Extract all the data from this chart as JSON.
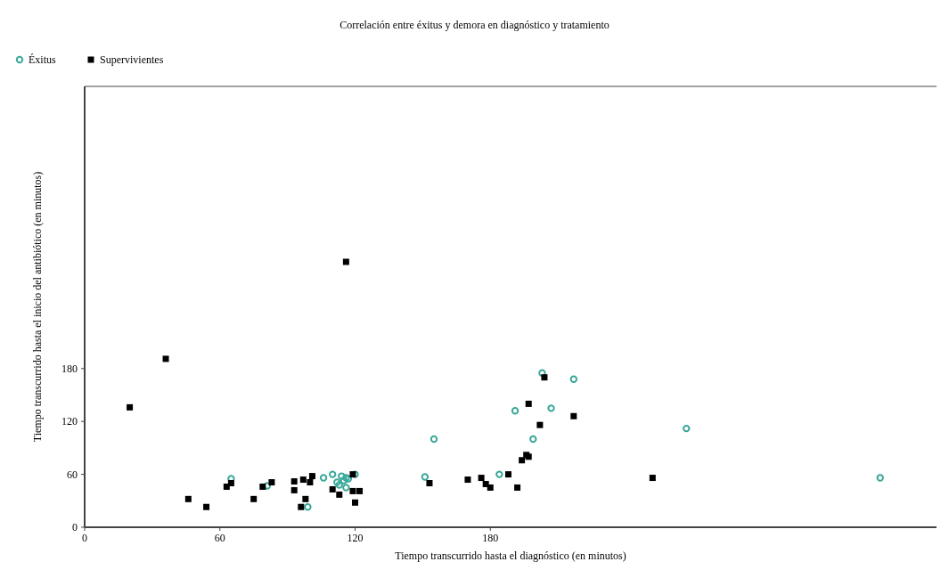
{
  "chart_data": {
    "type": "scatter",
    "title": "Correlación entre éxitus y demora en diagnóstico y tratamiento",
    "xlabel": "Tiempo transcurrido hasta el diagnóstico (en minutos)",
    "ylabel": "Tiempo transcurrido hasta el inicio del antibiótico (en minutos)",
    "xlim": [
      0,
      378
    ],
    "ylim": [
      0,
      500
    ],
    "xticks": [
      0,
      60,
      120,
      180
    ],
    "yticks": [
      0,
      60,
      120,
      180
    ],
    "grid": false,
    "legend": "top left",
    "series": [
      {
        "name": "Éxitus",
        "color": "#3aa89a",
        "marker": "circle",
        "x": [
          65,
          81,
          99,
          106,
          110,
          112,
          114,
          113,
          116,
          116,
          117,
          120,
          115,
          155,
          151,
          184,
          191,
          203,
          217,
          207,
          199,
          267,
          353
        ],
        "values": [
          55,
          47,
          23,
          56,
          60,
          51,
          58,
          48,
          45,
          56,
          55,
          60,
          53,
          100,
          57,
          60,
          132,
          175,
          168,
          135,
          100,
          112,
          56
        ]
      },
      {
        "name": "Supervivientes",
        "color": "#000000",
        "marker": "square",
        "x": [
          20,
          36,
          46,
          54,
          63,
          65,
          75,
          79,
          83,
          93,
          93,
          97,
          96,
          98,
          100,
          101,
          110,
          113,
          119,
          119,
          122,
          120,
          116,
          153,
          170,
          176,
          178,
          180,
          188,
          192,
          194,
          196,
          197,
          197,
          202,
          204,
          217,
          252
        ],
        "values": [
          136,
          191,
          32,
          23,
          46,
          50,
          32,
          46,
          51,
          52,
          42,
          54,
          23,
          32,
          51,
          58,
          43,
          37,
          60,
          41,
          41,
          28,
          301,
          50,
          54,
          56,
          49,
          45,
          60,
          45,
          76,
          82,
          80,
          140,
          116,
          170,
          126,
          56
        ]
      }
    ]
  }
}
